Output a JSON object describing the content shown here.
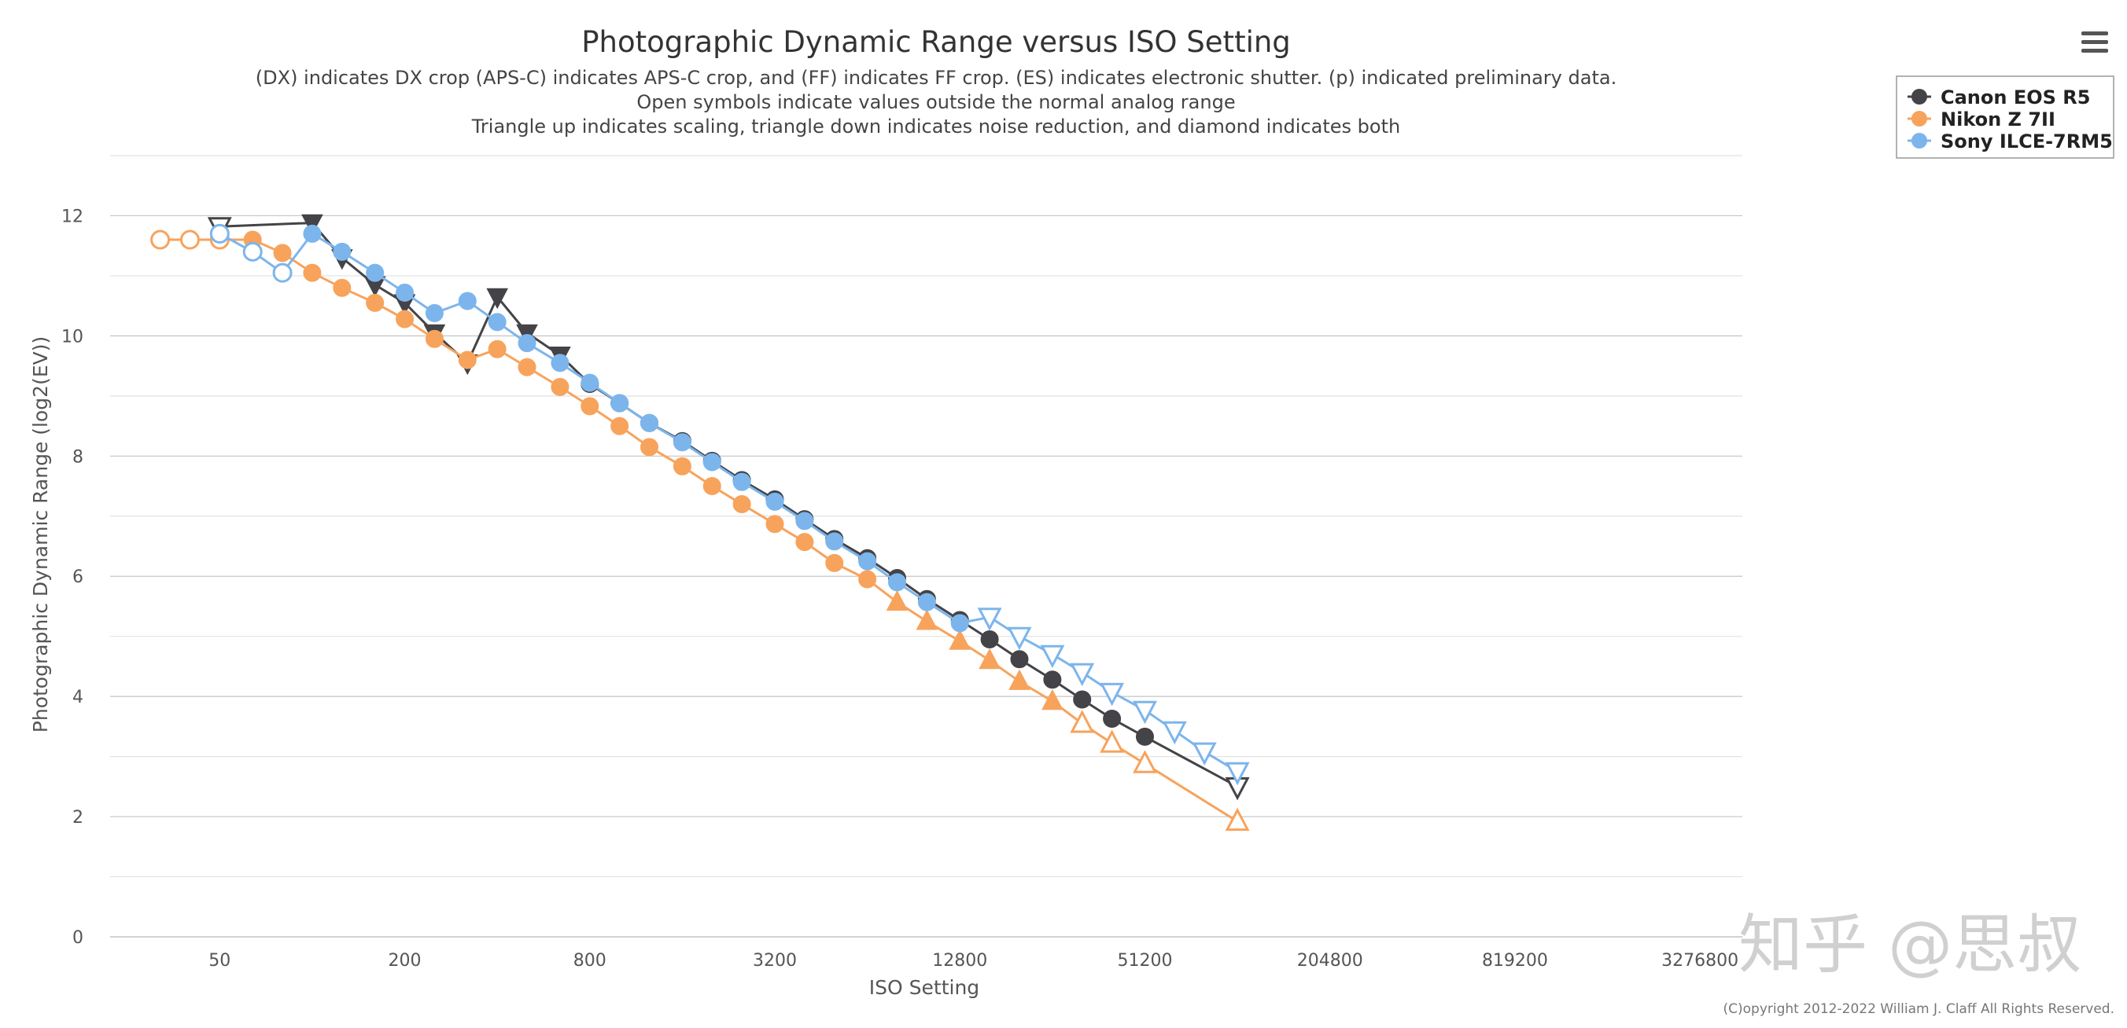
{
  "menu_icon": "hamburger-menu-icon",
  "watermark": "知乎 @思叔",
  "credits": "(C)opyright 2012-2022 William J. Claff All Rights Reserved.",
  "chart_data": {
    "type": "line",
    "title": "Photographic Dynamic Range versus ISO Setting",
    "subtitle": [
      "(DX) indicates DX crop (APS-C) indicates APS-C crop, and (FF) indicates FF crop. (ES) indicates electronic shutter. (p) indicated preliminary data.",
      "Open symbols indicate values outside the normal analog range",
      "Triangle up indicates scaling, triangle down indicates noise reduction, and diamond indicates both"
    ],
    "xlabel": "ISO Setting",
    "ylabel": "Photographic Dynamic Range (log2(EV))",
    "x_scale": "log2",
    "xlim": [
      22,
      4500000
    ],
    "ylim": [
      0,
      13
    ],
    "x_ticks": [
      50,
      200,
      800,
      3200,
      12800,
      51200,
      204800,
      819200,
      3276800
    ],
    "x_tick_labels": [
      "50",
      "200",
      "800",
      "3200",
      "12800",
      "51200",
      "204800",
      "819200",
      "3276800"
    ],
    "y_ticks": [
      0,
      2,
      4,
      6,
      8,
      10,
      12
    ],
    "y_tick_labels": [
      "0",
      "2",
      "4",
      "6",
      "8",
      "10",
      "12"
    ],
    "grid": true,
    "legend_position": "top-right",
    "series": [
      {
        "name": "Canon EOS R5",
        "color": "#434348",
        "points": [
          {
            "x": 50,
            "y": 11.82,
            "m": "tri-down-open"
          },
          {
            "x": 100,
            "y": 11.88,
            "m": "tri-down"
          },
          {
            "x": 125,
            "y": 11.3,
            "m": "tri-down"
          },
          {
            "x": 160,
            "y": 10.85,
            "m": "tri-down"
          },
          {
            "x": 200,
            "y": 10.55,
            "m": "tri-down"
          },
          {
            "x": 250,
            "y": 10.05,
            "m": "tri-down"
          },
          {
            "x": 320,
            "y": 9.55,
            "m": "tri-down"
          },
          {
            "x": 400,
            "y": 10.65,
            "m": "tri-down"
          },
          {
            "x": 500,
            "y": 10.05,
            "m": "tri-down"
          },
          {
            "x": 640,
            "y": 9.68,
            "m": "tri-down"
          },
          {
            "x": 800,
            "y": 9.2,
            "m": "circle"
          },
          {
            "x": 1000,
            "y": 8.88,
            "m": "circle"
          },
          {
            "x": 1250,
            "y": 8.55,
            "m": "circle"
          },
          {
            "x": 1600,
            "y": 8.25,
            "m": "circle"
          },
          {
            "x": 2000,
            "y": 7.92,
            "m": "circle"
          },
          {
            "x": 2500,
            "y": 7.6,
            "m": "circle"
          },
          {
            "x": 3200,
            "y": 7.28,
            "m": "circle"
          },
          {
            "x": 4000,
            "y": 6.95,
            "m": "circle"
          },
          {
            "x": 5000,
            "y": 6.62,
            "m": "circle"
          },
          {
            "x": 6400,
            "y": 6.3,
            "m": "circle"
          },
          {
            "x": 8000,
            "y": 5.97,
            "m": "circle"
          },
          {
            "x": 10000,
            "y": 5.62,
            "m": "circle"
          },
          {
            "x": 12800,
            "y": 5.27,
            "m": "circle"
          },
          {
            "x": 16000,
            "y": 4.95,
            "m": "circle"
          },
          {
            "x": 20000,
            "y": 4.62,
            "m": "circle"
          },
          {
            "x": 25600,
            "y": 4.28,
            "m": "circle"
          },
          {
            "x": 32000,
            "y": 3.95,
            "m": "circle"
          },
          {
            "x": 40000,
            "y": 3.63,
            "m": "circle"
          },
          {
            "x": 51200,
            "y": 3.33,
            "m": "circle"
          },
          {
            "x": 102400,
            "y": 2.5,
            "m": "tri-down-open"
          }
        ]
      },
      {
        "name": "Nikon Z 7II",
        "color": "#f7a35c",
        "points": [
          {
            "x": 32,
            "y": 11.6,
            "m": "circle-open"
          },
          {
            "x": 40,
            "y": 11.6,
            "m": "circle-open"
          },
          {
            "x": 50,
            "y": 11.6,
            "m": "circle-open"
          },
          {
            "x": 64,
            "y": 11.6,
            "m": "circle"
          },
          {
            "x": 80,
            "y": 11.38,
            "m": "circle"
          },
          {
            "x": 100,
            "y": 11.05,
            "m": "circle"
          },
          {
            "x": 125,
            "y": 10.8,
            "m": "circle"
          },
          {
            "x": 160,
            "y": 10.55,
            "m": "circle"
          },
          {
            "x": 200,
            "y": 10.28,
            "m": "circle"
          },
          {
            "x": 250,
            "y": 9.95,
            "m": "circle"
          },
          {
            "x": 320,
            "y": 9.6,
            "m": "circle"
          },
          {
            "x": 400,
            "y": 9.78,
            "m": "circle"
          },
          {
            "x": 500,
            "y": 9.48,
            "m": "circle"
          },
          {
            "x": 640,
            "y": 9.15,
            "m": "circle"
          },
          {
            "x": 800,
            "y": 8.83,
            "m": "circle"
          },
          {
            "x": 1000,
            "y": 8.5,
            "m": "circle"
          },
          {
            "x": 1250,
            "y": 8.15,
            "m": "circle"
          },
          {
            "x": 1600,
            "y": 7.83,
            "m": "circle"
          },
          {
            "x": 2000,
            "y": 7.5,
            "m": "circle"
          },
          {
            "x": 2500,
            "y": 7.2,
            "m": "circle"
          },
          {
            "x": 3200,
            "y": 6.87,
            "m": "circle"
          },
          {
            "x": 4000,
            "y": 6.57,
            "m": "circle"
          },
          {
            "x": 5000,
            "y": 6.22,
            "m": "circle"
          },
          {
            "x": 6400,
            "y": 5.95,
            "m": "circle"
          },
          {
            "x": 8000,
            "y": 5.57,
            "m": "tri-up"
          },
          {
            "x": 10000,
            "y": 5.25,
            "m": "tri-up"
          },
          {
            "x": 12800,
            "y": 4.92,
            "m": "tri-up"
          },
          {
            "x": 16000,
            "y": 4.6,
            "m": "tri-up"
          },
          {
            "x": 20000,
            "y": 4.25,
            "m": "tri-up"
          },
          {
            "x": 25600,
            "y": 3.92,
            "m": "tri-up"
          },
          {
            "x": 32000,
            "y": 3.55,
            "m": "tri-up-open"
          },
          {
            "x": 40000,
            "y": 3.22,
            "m": "tri-up-open"
          },
          {
            "x": 51200,
            "y": 2.88,
            "m": "tri-up-open"
          },
          {
            "x": 102400,
            "y": 1.92,
            "m": "tri-up-open"
          }
        ]
      },
      {
        "name": "Sony ILCE-7RM5",
        "color": "#7cb5ec",
        "points": [
          {
            "x": 50,
            "y": 11.7,
            "m": "circle-open"
          },
          {
            "x": 64,
            "y": 11.4,
            "m": "circle-open"
          },
          {
            "x": 80,
            "y": 11.05,
            "m": "circle-open"
          },
          {
            "x": 100,
            "y": 11.7,
            "m": "circle"
          },
          {
            "x": 125,
            "y": 11.4,
            "m": "circle"
          },
          {
            "x": 160,
            "y": 11.05,
            "m": "circle"
          },
          {
            "x": 200,
            "y": 10.72,
            "m": "circle"
          },
          {
            "x": 250,
            "y": 10.38,
            "m": "circle"
          },
          {
            "x": 320,
            "y": 10.58,
            "m": "circle"
          },
          {
            "x": 400,
            "y": 10.23,
            "m": "circle"
          },
          {
            "x": 500,
            "y": 9.88,
            "m": "circle"
          },
          {
            "x": 640,
            "y": 9.55,
            "m": "circle"
          },
          {
            "x": 800,
            "y": 9.22,
            "m": "circle"
          },
          {
            "x": 1000,
            "y": 8.88,
            "m": "circle"
          },
          {
            "x": 1250,
            "y": 8.55,
            "m": "circle"
          },
          {
            "x": 1600,
            "y": 8.23,
            "m": "circle"
          },
          {
            "x": 2000,
            "y": 7.9,
            "m": "circle"
          },
          {
            "x": 2500,
            "y": 7.57,
            "m": "circle"
          },
          {
            "x": 3200,
            "y": 7.24,
            "m": "circle"
          },
          {
            "x": 4000,
            "y": 6.92,
            "m": "circle"
          },
          {
            "x": 5000,
            "y": 6.58,
            "m": "circle"
          },
          {
            "x": 6400,
            "y": 6.25,
            "m": "circle"
          },
          {
            "x": 8000,
            "y": 5.9,
            "m": "circle"
          },
          {
            "x": 10000,
            "y": 5.57,
            "m": "circle"
          },
          {
            "x": 12800,
            "y": 5.22,
            "m": "circle"
          },
          {
            "x": 16000,
            "y": 5.32,
            "m": "tri-down-open"
          },
          {
            "x": 20000,
            "y": 5.0,
            "m": "tri-down-open"
          },
          {
            "x": 25600,
            "y": 4.7,
            "m": "tri-down-open"
          },
          {
            "x": 32000,
            "y": 4.4,
            "m": "tri-down-open"
          },
          {
            "x": 40000,
            "y": 4.07,
            "m": "tri-down-open"
          },
          {
            "x": 51200,
            "y": 3.77,
            "m": "tri-down-open"
          },
          {
            "x": 64000,
            "y": 3.43,
            "m": "tri-down-open"
          },
          {
            "x": 80000,
            "y": 3.08,
            "m": "tri-down-open"
          },
          {
            "x": 102400,
            "y": 2.75,
            "m": "tri-down-open"
          }
        ]
      }
    ]
  }
}
